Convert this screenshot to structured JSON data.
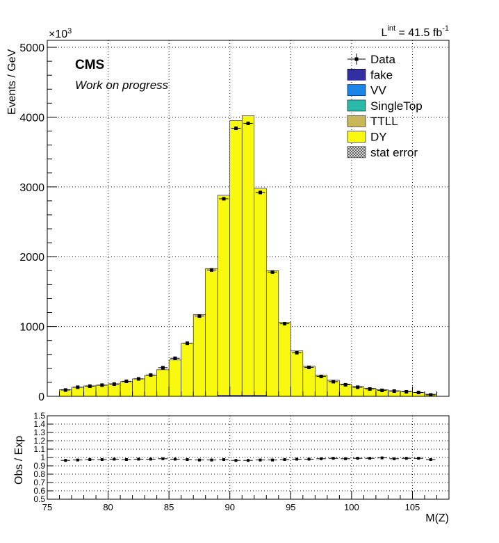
{
  "header": {
    "exp_label": "CMS",
    "status": "Work on progress",
    "lumi_prefix": "L",
    "lumi_sup": "int",
    "lumi_value": " = 41.5 fb",
    "lumi_unit_sup": "-1",
    "exp_multiplier": "×10",
    "exp_multiplier_sup": "3"
  },
  "legend": [
    {
      "label": "Data",
      "kind": "marker",
      "color": "#000000"
    },
    {
      "label": "fake",
      "kind": "box",
      "color": "#332ea1"
    },
    {
      "label": "VV",
      "kind": "box",
      "color": "#1c84e6"
    },
    {
      "label": "SingleTop",
      "kind": "box",
      "color": "#2ab8a8"
    },
    {
      "label": "TTLL",
      "kind": "box",
      "color": "#c8b85a"
    },
    {
      "label": "DY",
      "kind": "box",
      "color": "#f9f90f"
    },
    {
      "label": "stat error",
      "kind": "hatch",
      "color": "#555555"
    }
  ],
  "chart_data": [
    {
      "type": "bar",
      "title": "",
      "xlabel": "",
      "ylabel": "Events / GeV",
      "xlim": [
        75,
        108
      ],
      "ylim": [
        0,
        5100
      ],
      "grid": true,
      "legend_position": "top-right",
      "y_ticks": [
        0,
        1000,
        2000,
        3000,
        4000,
        5000
      ],
      "y_tick_labels": [
        "0",
        "1000",
        "2000",
        "3000",
        "4000",
        "5000"
      ],
      "bin_edges": [
        76,
        77,
        78,
        79,
        80,
        81,
        82,
        83,
        84,
        85,
        86,
        87,
        88,
        89,
        90,
        91,
        92,
        93,
        94,
        95,
        96,
        97,
        98,
        99,
        100,
        101,
        102,
        103,
        104,
        105,
        106,
        107
      ],
      "series": [
        {
          "name": "DY",
          "color": "#f9f90f",
          "values": [
            95,
            130,
            150,
            160,
            180,
            210,
            250,
            300,
            380,
            520,
            760,
            1170,
            1830,
            2880,
            3950,
            4020,
            2980,
            1800,
            1060,
            650,
            430,
            300,
            230,
            175,
            140,
            115,
            95,
            80,
            70,
            55,
            30
          ]
        },
        {
          "name": "Data",
          "color": "#000000",
          "values": [
            90,
            130,
            145,
            160,
            175,
            215,
            250,
            305,
            410,
            545,
            760,
            1150,
            1810,
            2830,
            3840,
            3910,
            2920,
            1780,
            1040,
            625,
            415,
            285,
            210,
            165,
            130,
            105,
            85,
            75,
            65,
            55,
            20
          ]
        }
      ]
    },
    {
      "type": "scatter",
      "title": "",
      "xlabel": "M(Z)",
      "ylabel": "Obs / Exp",
      "xlim": [
        75,
        108
      ],
      "ylim": [
        0.5,
        1.5
      ],
      "grid": true,
      "x_ticks": [
        75,
        80,
        85,
        90,
        95,
        100,
        105
      ],
      "x_tick_labels": [
        "75",
        "80",
        "85",
        "90",
        "95",
        "100",
        "105"
      ],
      "y_ticks": [
        0.5,
        0.6,
        0.7,
        0.8,
        0.9,
        1.0,
        1.1,
        1.2,
        1.3,
        1.4,
        1.5
      ],
      "y_tick_labels": [
        "0.5",
        "0.6",
        "0.7",
        "0.8",
        "0.9",
        "1",
        "1.1",
        "1.2",
        "1.3",
        "1.4",
        "1.5"
      ],
      "series": [
        {
          "name": "Data",
          "color": "#000000",
          "x": [
            76.5,
            77.5,
            78.5,
            79.5,
            80.5,
            81.5,
            82.5,
            83.5,
            84.5,
            85.5,
            86.5,
            87.5,
            88.5,
            89.5,
            90.5,
            91.5,
            92.5,
            93.5,
            94.5,
            95.5,
            96.5,
            97.5,
            98.5,
            99.5,
            100.5,
            101.5,
            102.5,
            103.5,
            104.5,
            105.5,
            106.5
          ],
          "values": [
            0.965,
            0.97,
            0.975,
            0.975,
            0.98,
            0.975,
            0.98,
            0.98,
            0.985,
            0.98,
            0.975,
            0.97,
            0.97,
            0.975,
            0.965,
            0.965,
            0.97,
            0.97,
            0.975,
            0.98,
            0.98,
            0.985,
            0.99,
            0.985,
            0.99,
            0.99,
            0.995,
            0.985,
            0.99,
            0.99,
            0.975
          ]
        }
      ]
    }
  ]
}
